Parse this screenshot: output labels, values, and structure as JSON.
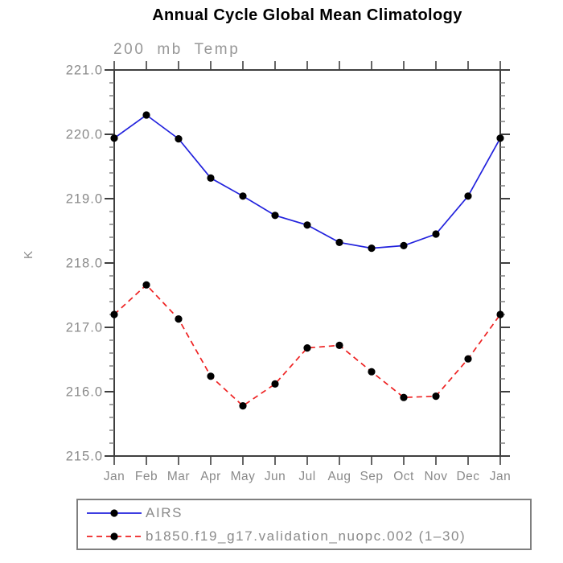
{
  "page": {
    "background": "#ffffff"
  },
  "colors": {
    "axis": "#3f3f3f",
    "tick_minor": "#7a7a7a",
    "label": "#8a8a8a",
    "title": "#000000",
    "airs_blue": "#2222dd",
    "model_red": "#ee2222",
    "marker_black": "#000000",
    "legend_border": "#7f7f7f"
  },
  "chart_data": {
    "type": "line",
    "title": "Annual Cycle Global Mean Climatology",
    "subtitle": "200 mb Temp",
    "xlabel": "",
    "ylabel": "K",
    "categories": [
      "Jan",
      "Feb",
      "Mar",
      "Apr",
      "May",
      "Jun",
      "Jul",
      "Aug",
      "Sep",
      "Oct",
      "Nov",
      "Dec",
      "Jan"
    ],
    "ylim": [
      215.0,
      221.0
    ],
    "ytick_step": 1.0,
    "yminor_step": 0.2,
    "ytick_labels": [
      "215.0",
      "216.0",
      "217.0",
      "218.0",
      "219.0",
      "220.0",
      "221.0"
    ],
    "grid": "off",
    "legend_position": "bottom-left-box",
    "series": [
      {
        "name": "AIRS",
        "color": "#2222dd",
        "line_style": "solid",
        "marker": "circle",
        "marker_color": "#000000",
        "values": [
          219.94,
          220.3,
          219.93,
          219.32,
          219.04,
          218.74,
          218.59,
          218.32,
          218.23,
          218.27,
          218.45,
          219.04,
          219.94
        ]
      },
      {
        "name": "b1850.f19_g17.validation_nuopc.002 (1–30)",
        "color": "#ee2222",
        "line_style": "dashed",
        "marker": "circle",
        "marker_color": "#000000",
        "values": [
          217.2,
          217.66,
          217.13,
          216.24,
          215.78,
          216.12,
          216.68,
          216.72,
          216.31,
          215.91,
          215.93,
          216.51,
          217.2
        ]
      }
    ]
  }
}
